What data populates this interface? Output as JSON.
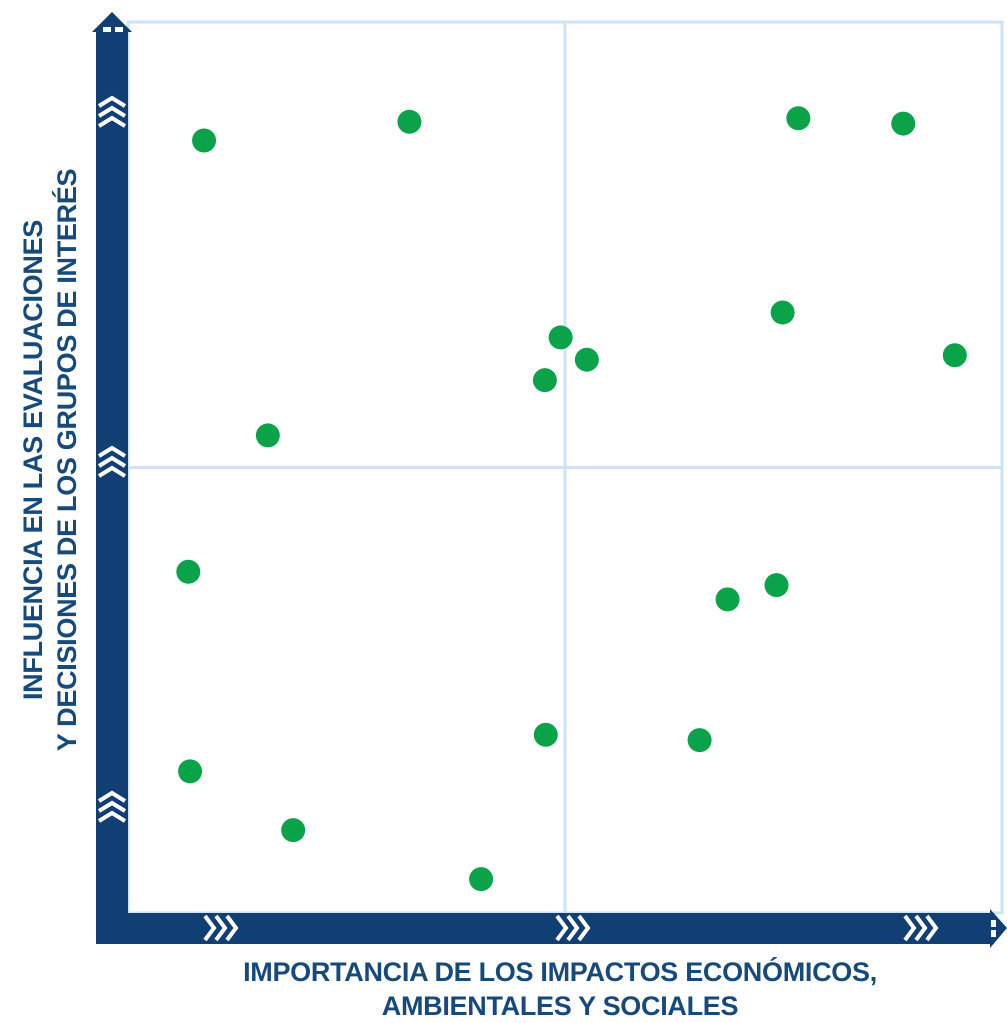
{
  "chart_data": {
    "type": "scatter",
    "title": "",
    "xlabel": [
      "IMPORTANCIA DE LOS IMPACTOS ECONÓMICOS,",
      "AMBIENTALES Y SOCIALES"
    ],
    "ylabel": [
      "INFLUENCIA EN LAS EVALUACIONES",
      "Y DECISIONES DE LOS GRUPOS DE INTERÉS"
    ],
    "xlim": [
      0,
      100
    ],
    "ylim": [
      0,
      100
    ],
    "quadrant_dividers": {
      "x": 50,
      "y": 50
    },
    "grid": false,
    "point_color": "#0aa34a",
    "axis_color": "#123f73",
    "divider_color": "#cfe3f6",
    "points": [
      {
        "x": 8.7,
        "y": 86.7
      },
      {
        "x": 32.2,
        "y": 88.8
      },
      {
        "x": 76.7,
        "y": 89.2
      },
      {
        "x": 88.7,
        "y": 88.6
      },
      {
        "x": 74.9,
        "y": 67.4
      },
      {
        "x": 94.6,
        "y": 62.6
      },
      {
        "x": 49.5,
        "y": 64.6
      },
      {
        "x": 52.5,
        "y": 62.1
      },
      {
        "x": 47.7,
        "y": 59.8
      },
      {
        "x": 16.0,
        "y": 53.6
      },
      {
        "x": 6.9,
        "y": 38.3
      },
      {
        "x": 74.2,
        "y": 36.8
      },
      {
        "x": 68.6,
        "y": 35.2
      },
      {
        "x": 47.8,
        "y": 20.0
      },
      {
        "x": 65.4,
        "y": 19.4
      },
      {
        "x": 7.1,
        "y": 15.9
      },
      {
        "x": 18.9,
        "y": 9.3
      },
      {
        "x": 40.4,
        "y": 3.8
      }
    ]
  }
}
